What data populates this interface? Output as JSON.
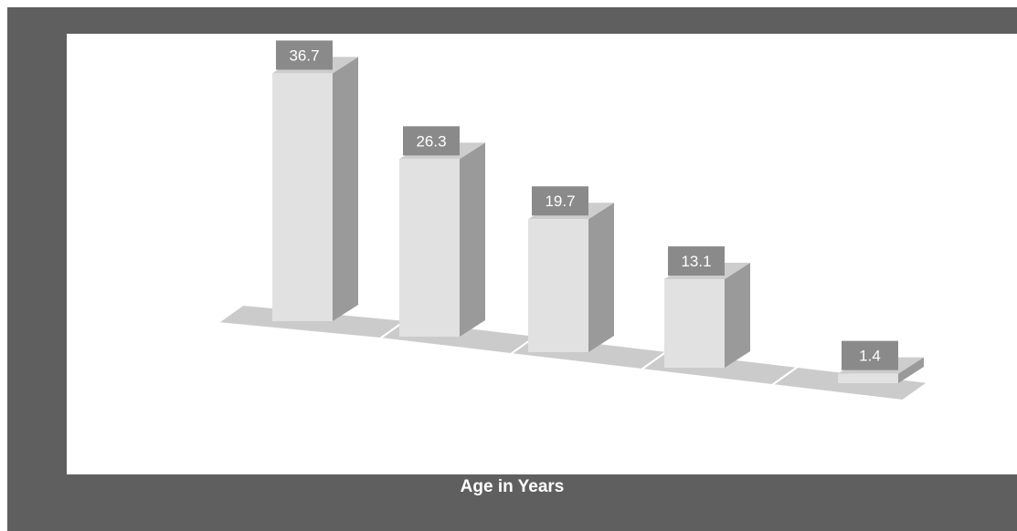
{
  "chart_data": {
    "type": "bar",
    "categories": [
      "",
      "",
      "",
      "",
      ""
    ],
    "values": [
      36.7,
      26.3,
      19.7,
      13.1,
      1.4
    ],
    "xlabel": "Age in Years",
    "ylabel": "",
    "title": "",
    "grid": false,
    "legend": "none",
    "style": "3d-column",
    "colors": {
      "frame": "#5f5f5f",
      "plot_background": "#ffffff",
      "bar_front": "#e1e1e1",
      "bar_side": "#9a9a9a",
      "bar_top": "#cdcdcd",
      "floor": "#cbcbcb",
      "label_box": "#8a8a8a",
      "label_text": "#ffffff"
    }
  }
}
